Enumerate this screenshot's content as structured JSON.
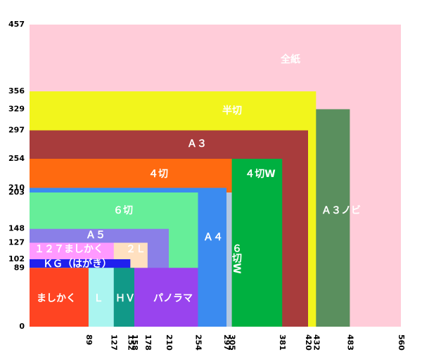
{
  "chart_data": {
    "type": "rect",
    "xlim": [
      0,
      560
    ],
    "ylim": [
      0,
      457
    ],
    "xticks": [
      89,
      127,
      152,
      158,
      178,
      210,
      254,
      297,
      305,
      381,
      420,
      432,
      483,
      560
    ],
    "yticks": [
      0,
      89,
      102,
      127,
      148,
      203,
      210,
      254,
      297,
      329,
      356,
      457
    ],
    "series": [
      {
        "name": "全紙",
        "color": "#ffccd9",
        "values": [
          560,
          457
        ]
      },
      {
        "name": "Ａ３ノビ",
        "color": "#5a8f5e",
        "values": [
          483,
          329
        ]
      },
      {
        "name": "半切",
        "color": "#f2f51c",
        "values": [
          432,
          356
        ]
      },
      {
        "name": "Ａ３",
        "color": "#a83c3c",
        "values": [
          420,
          297
        ]
      },
      {
        "name": "４切W",
        "color": "#00b040",
        "values": [
          381,
          254
        ]
      },
      {
        "name": "４切",
        "color": "#ff6a10",
        "values": [
          305,
          254
        ]
      },
      {
        "name": "６切W",
        "color": "#b4c8e0",
        "values": [
          305,
          203
        ]
      },
      {
        "name": "Ａ４",
        "color": "#3b8bf0",
        "values": [
          297,
          210
        ]
      },
      {
        "name": "６切",
        "color": "#66ee99",
        "values": [
          254,
          203
        ]
      },
      {
        "name": "Ａ５",
        "color": "#8a7fe8",
        "values": [
          210,
          148
        ]
      },
      {
        "name": "２Ｌ",
        "color": "#ffe0c0",
        "values": [
          178,
          127
        ]
      },
      {
        "name": "１２７ましかく",
        "color": "#ff99ff",
        "values": [
          127,
          127
        ]
      },
      {
        "name": "ＫＧ（はがき）",
        "color": "#2020ee",
        "values": [
          152,
          102
        ]
      },
      {
        "name": "パノラマ",
        "color": "#9944ee",
        "values": [
          254,
          89
        ]
      },
      {
        "name": "ＨＶ",
        "color": "#119988",
        "values": [
          158,
          89
        ]
      },
      {
        "name": "Ｌ",
        "color": "#aaf5f0",
        "values": [
          127,
          89
        ]
      },
      {
        "name": "ましかく",
        "color": "#ff4422",
        "values": [
          89,
          89
        ]
      }
    ]
  }
}
